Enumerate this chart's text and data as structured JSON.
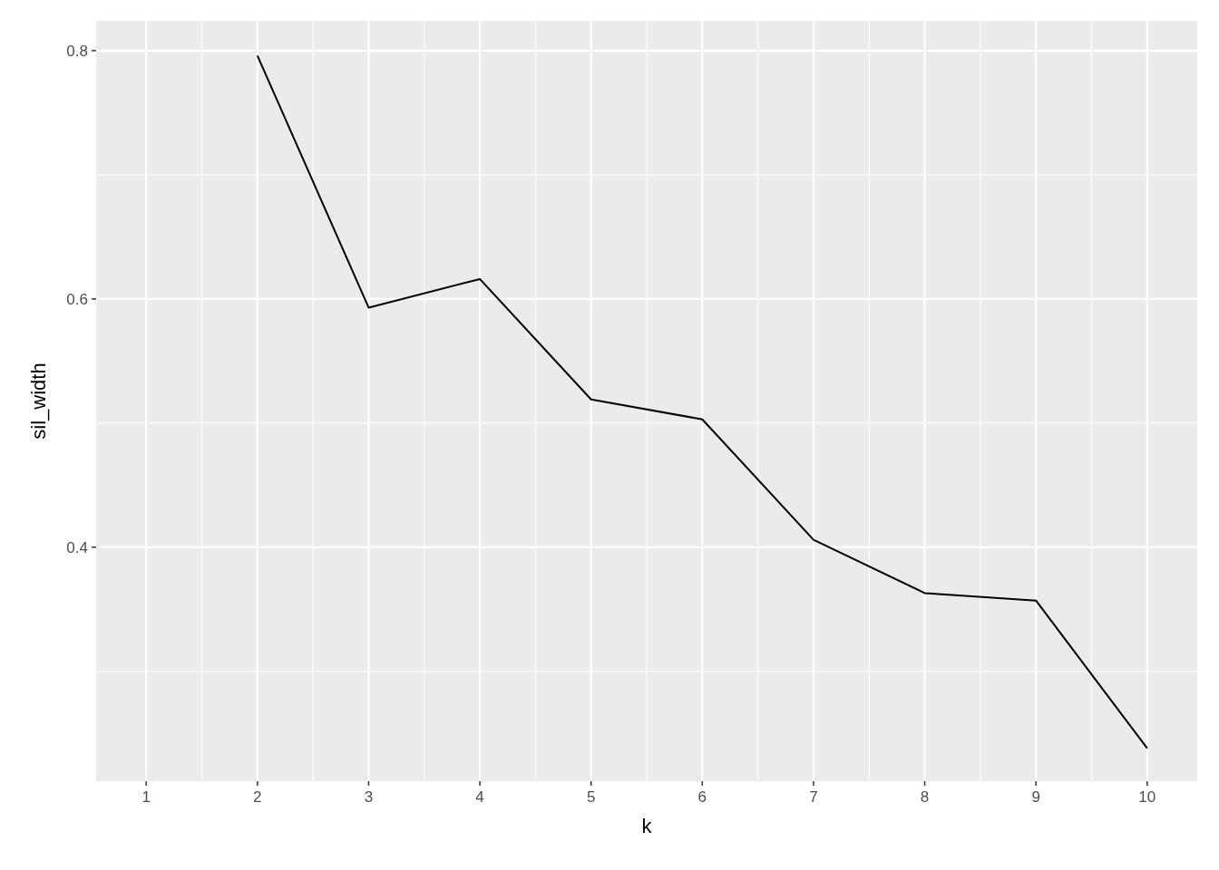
{
  "chart_data": {
    "type": "line",
    "xlabel": "k",
    "ylabel": "sil_width",
    "x": [
      2,
      3,
      4,
      5,
      6,
      7,
      8,
      9,
      10
    ],
    "series": [
      {
        "color": "#000000",
        "values": [
          0.796,
          0.593,
          0.616,
          0.519,
          0.503,
          0.406,
          0.363,
          0.357,
          0.238
        ]
      }
    ],
    "xlim": [
      0.55,
      10.45
    ],
    "xticks": [
      1,
      2,
      3,
      4,
      5,
      6,
      7,
      8,
      9,
      10
    ],
    "ylim": [
      0.2115,
      0.824
    ],
    "yticks": [
      0.4,
      0.6,
      0.8
    ],
    "grid": true,
    "marker": "none",
    "line_style": "solid"
  }
}
